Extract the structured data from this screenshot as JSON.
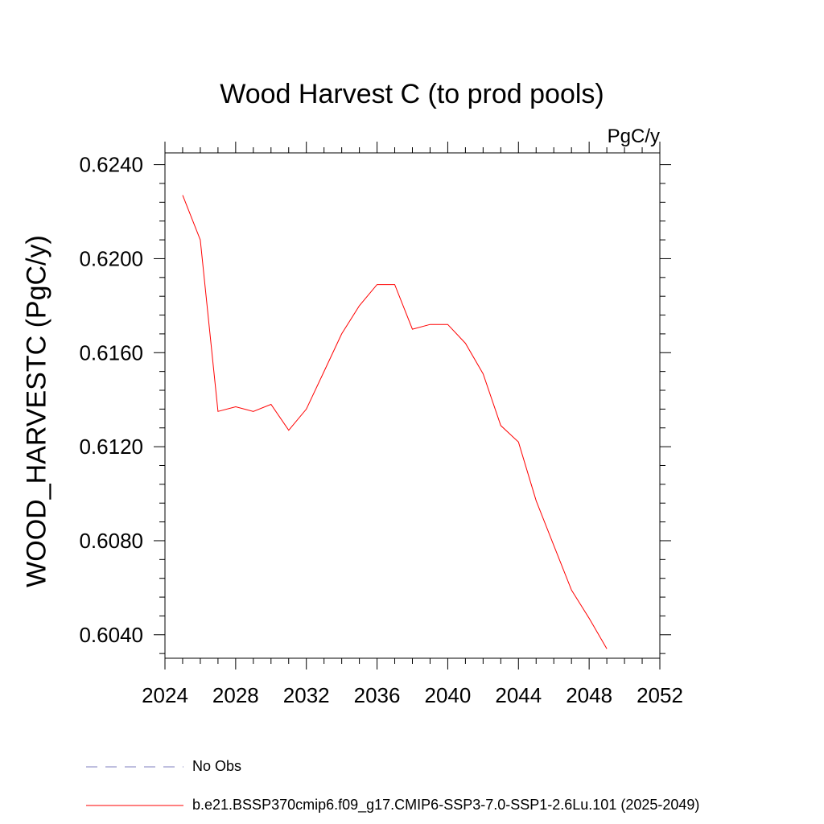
{
  "chart_data": {
    "type": "line",
    "title": "Wood Harvest C (to prod pools)",
    "units_label": "PgC/y",
    "ylabel": "WOOD_HARVESTC  (PgC/y)",
    "xlabel": "",
    "xlim": [
      2024,
      2052
    ],
    "ylim": [
      0.603,
      0.6245
    ],
    "x_ticks": [
      "2024",
      "2028",
      "2032",
      "2036",
      "2040",
      "2044",
      "2048",
      "2052"
    ],
    "y_ticks": [
      "0.6040",
      "0.6080",
      "0.6120",
      "0.6160",
      "0.6200",
      "0.6240"
    ],
    "grid": false,
    "series": [
      {
        "name": "b.e21.BSSP370cmip6.f09_g17.CMIP6-SSP3-7.0-SSP1-2.6Lu.101 (2025-2049)",
        "color": "#ff0000",
        "style": "solid",
        "x": [
          2025,
          2026,
          2027,
          2028,
          2029,
          2030,
          2031,
          2032,
          2033,
          2034,
          2035,
          2036,
          2037,
          2038,
          2039,
          2040,
          2041,
          2042,
          2043,
          2044,
          2045,
          2046,
          2047,
          2048,
          2049
        ],
        "y": [
          0.6227,
          0.6208,
          0.6135,
          0.6137,
          0.6135,
          0.6138,
          0.6127,
          0.6136,
          0.6152,
          0.6168,
          0.618,
          0.6189,
          0.6189,
          0.617,
          0.6172,
          0.6172,
          0.6164,
          0.6151,
          0.6129,
          0.6122,
          0.6097,
          0.6078,
          0.6059,
          0.6047,
          0.6034
        ]
      }
    ],
    "legend": [
      {
        "label": "No Obs",
        "color": "#7f7fbf",
        "style": "dashed"
      },
      {
        "label": "b.e21.BSSP370cmip6.f09_g17.CMIP6-SSP3-7.0-SSP1-2.6Lu.101 (2025-2049)",
        "color": "#ff0000",
        "style": "solid"
      }
    ]
  }
}
